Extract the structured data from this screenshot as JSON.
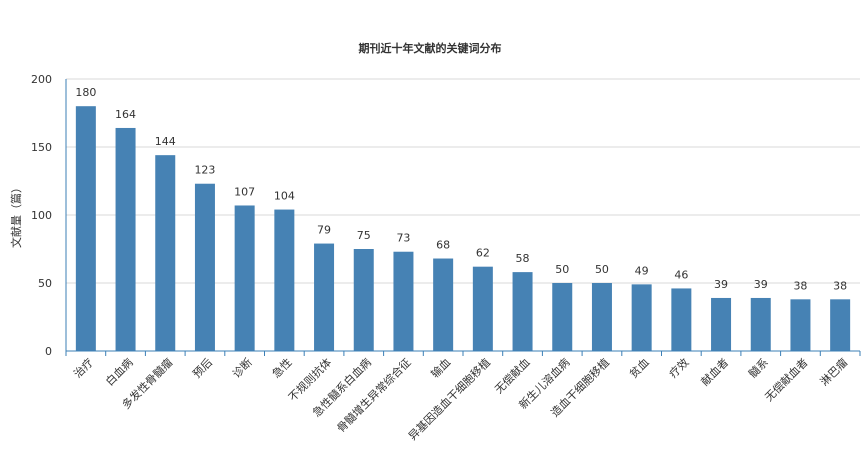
{
  "chart_data": {
    "type": "bar",
    "title": "期刊近十年文献的关键词分布",
    "xlabel": "",
    "ylabel": "文献量（篇）",
    "ylim": [
      0,
      200
    ],
    "yticks": [
      0,
      50,
      100,
      150,
      200
    ],
    "grid": true,
    "legend": "none",
    "bar_color": "#4682b4",
    "categories": [
      "治疗",
      "白血病",
      "多发性骨髓瘤",
      "预后",
      "诊断",
      "急性",
      "不规则抗体",
      "急性髓系白血病",
      "骨髓增生异常综合征",
      "输血",
      "异基因造血干细胞移植",
      "无偿献血",
      "新生儿溶血病",
      "造血干细胞移植",
      "贫血",
      "疗效",
      "献血者",
      "髓系",
      "无偿献血者",
      "淋巴瘤"
    ],
    "values": [
      180,
      164,
      144,
      123,
      107,
      104,
      79,
      75,
      73,
      68,
      62,
      58,
      50,
      50,
      49,
      46,
      39,
      39,
      38,
      38
    ]
  }
}
